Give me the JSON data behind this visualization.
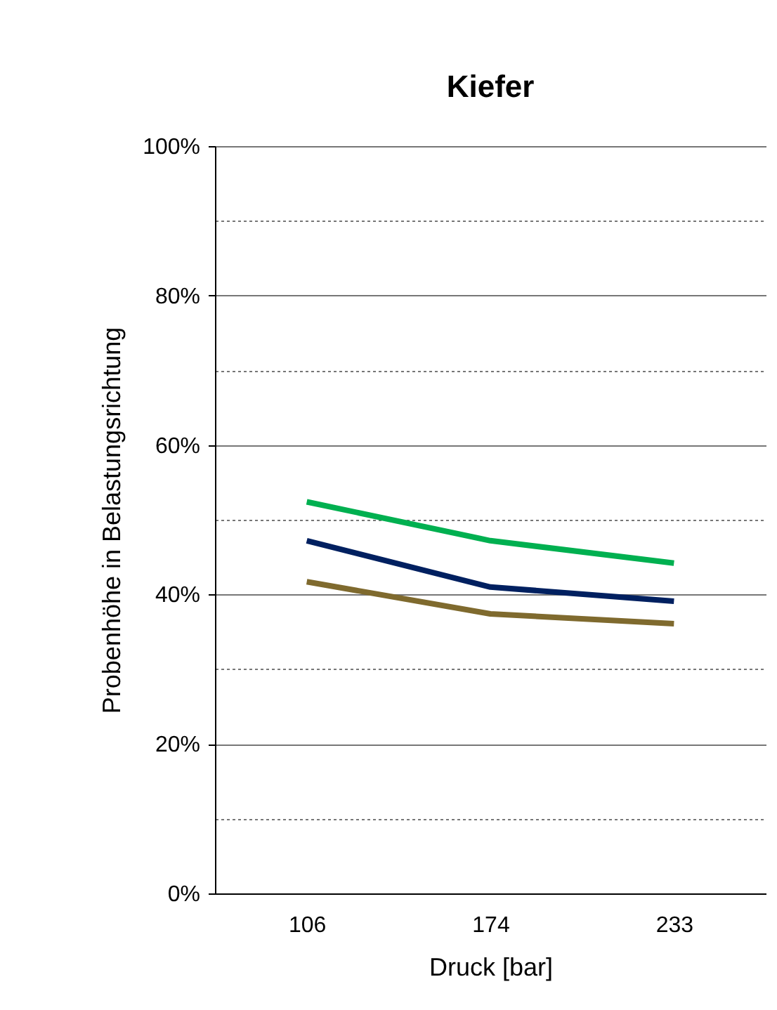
{
  "chart_data": {
    "type": "line",
    "title": "Kiefer",
    "xlabel": "Druck [bar]",
    "ylabel": "Probenhöhe in Belastungsrichtung",
    "categories": [
      "106",
      "174",
      "233"
    ],
    "series": [
      {
        "color": "#00b050",
        "values": [
          52.4,
          47.2,
          44.2
        ]
      },
      {
        "color": "#002060",
        "values": [
          47.2,
          41.0,
          39.1
        ]
      },
      {
        "color": "#7f6a2e",
        "values": [
          41.7,
          37.4,
          36.1
        ]
      }
    ],
    "ylim": [
      0,
      100
    ],
    "yticks": [
      {
        "value": 0,
        "label": "0%"
      },
      {
        "value": 10,
        "label": null
      },
      {
        "value": 20,
        "label": "20%"
      },
      {
        "value": 30,
        "label": null
      },
      {
        "value": 40,
        "label": "40%"
      },
      {
        "value": 50,
        "label": null
      },
      {
        "value": 60,
        "label": "60%"
      },
      {
        "value": 70,
        "label": null
      },
      {
        "value": 80,
        "label": "80%"
      },
      {
        "value": 90,
        "label": null
      },
      {
        "value": 100,
        "label": "100%"
      }
    ],
    "grid": "y",
    "legend": false,
    "marker": "none",
    "line_style": "solid"
  }
}
